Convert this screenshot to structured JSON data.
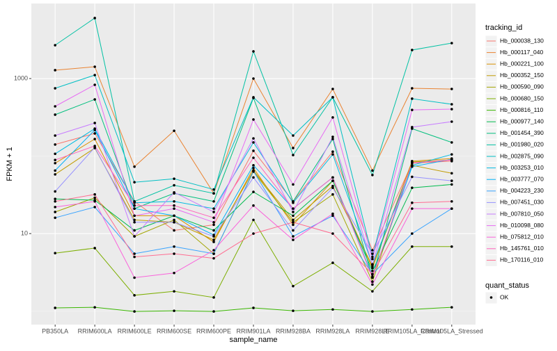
{
  "chart_data": {
    "type": "line",
    "log_y": true,
    "grid": true,
    "x_label": "sample_name",
    "y_label": "FPKM + 1",
    "categories": [
      "PB350LA",
      "RRIM600LA",
      "RRIM600LE",
      "RRIM600SE",
      "RRIM600PE",
      "RRIM901LA",
      "RRIM928BA",
      "RRIM928LA",
      "RRIM928LE",
      "RRIM105LA_Control",
      "RRIM105LA_Stressed"
    ],
    "ylim": [
      0.67,
      9300
    ],
    "yticks": [
      10,
      1000
    ],
    "legend_title": "tracking_id",
    "point_legend": {
      "title": "quant_status",
      "labels": [
        "OK"
      ],
      "color": "#000000"
    },
    "series": [
      {
        "name": "Hb_000038_130",
        "color": "#F8766D",
        "values": [
          141,
          196,
          26,
          11,
          13,
          117,
          26,
          114,
          6.1,
          81,
          86
        ]
      },
      {
        "name": "Hb_000117_040",
        "color": "#EA8331",
        "values": [
          1282,
          1420,
          73,
          212,
          33,
          1000,
          127,
          733,
          65,
          749,
          733
        ]
      },
      {
        "name": "Hb_000221_100",
        "color": "#D89000",
        "values": [
          81,
          166,
          17,
          17,
          7.8,
          70,
          13,
          48,
          3.6,
          86,
          93
        ]
      },
      {
        "name": "Hb_000352_150",
        "color": "#C09B00",
        "values": [
          58,
          127,
          15,
          14,
          8.3,
          65,
          15,
          41,
          3.8,
          76,
          60
        ]
      },
      {
        "name": "Hb_000590_090",
        "color": "#A3A500",
        "values": [
          19,
          29,
          9.2,
          15,
          5.5,
          63,
          14,
          32,
          2.4,
          84,
          89
        ]
      },
      {
        "name": "Hb_000680_150",
        "color": "#7CAE00",
        "values": [
          5.6,
          6.5,
          1.6,
          1.8,
          1.5,
          15,
          2.1,
          4.2,
          1.8,
          6.8,
          6.8
        ]
      },
      {
        "name": "Hb_000816_110",
        "color": "#39B600",
        "values": [
          1.1,
          1.12,
          0.99,
          1.01,
          0.99,
          1.1,
          1.01,
          1.05,
          0.99,
          1.05,
          1.12
        ]
      },
      {
        "name": "Hb_000977_140",
        "color": "#00BB4E",
        "values": [
          28,
          27,
          11,
          17,
          11,
          34.5,
          17,
          48,
          3.3,
          39,
          43
        ]
      },
      {
        "name": "Hb_001454_390",
        "color": "#00BF7D",
        "values": [
          342,
          538,
          21,
          33,
          26,
          561,
          26,
          166,
          2.7,
          226,
          150
        ]
      },
      {
        "name": "Hb_001980_020",
        "color": "#00C1A3",
        "values": [
          2692,
          6030,
          26,
          42,
          33,
          2239,
          103,
          573,
          57,
          2333,
          2866
        ]
      },
      {
        "name": "Hb_002875_090",
        "color": "#00BFC4",
        "values": [
          749,
          1109,
          46,
          51,
          37,
          573,
          184,
          573,
          5.0,
          550,
          466
        ]
      },
      {
        "name": "Hb_003253_010",
        "color": "#00BAE0",
        "values": [
          107,
          226,
          25,
          26,
          21,
          150,
          25,
          105,
          4.0,
          76,
          105
        ]
      },
      {
        "name": "Hb_003777_070",
        "color": "#00B0F6",
        "values": [
          65,
          217,
          21,
          17,
          9.6,
          76,
          21,
          53,
          2.8,
          73,
          91
        ]
      },
      {
        "name": "Hb_004223_230",
        "color": "#35A2FF",
        "values": [
          16,
          22,
          5.5,
          6.8,
          5.5,
          64,
          9.2,
          17,
          3.0,
          10,
          21
        ]
      },
      {
        "name": "Hb_007451_030",
        "color": "#9590FF",
        "values": [
          35,
          129,
          14,
          14,
          9.2,
          53,
          11,
          39,
          5.5,
          54,
          48
        ]
      },
      {
        "name": "Hb_007810_050",
        "color": "#C77CFF",
        "values": [
          184,
          267,
          9.2,
          34,
          19,
          169,
          19,
          177,
          4.0,
          236,
          278
        ]
      },
      {
        "name": "Hb_010098_080",
        "color": "#E76BF3",
        "values": [
          438,
          830,
          17,
          21,
          14,
          296,
          43,
          315,
          4.7,
          394,
          403
        ]
      },
      {
        "name": "Hb_075812_010",
        "color": "#FA62DB",
        "values": [
          22,
          26,
          2.7,
          3.1,
          6.1,
          23,
          8.3,
          18,
          2.2,
          21,
          21
        ]
      },
      {
        "name": "Hb_145761_010",
        "color": "#FF62BC",
        "values": [
          89,
          135,
          23,
          23,
          16,
          95,
          21,
          53,
          2.7,
          82,
          89
        ]
      },
      {
        "name": "Hb_170116_010",
        "color": "#FF6C91",
        "values": [
          26,
          32,
          5.0,
          5.5,
          4.8,
          10,
          14,
          10,
          3.0,
          25,
          26
        ]
      }
    ]
  }
}
